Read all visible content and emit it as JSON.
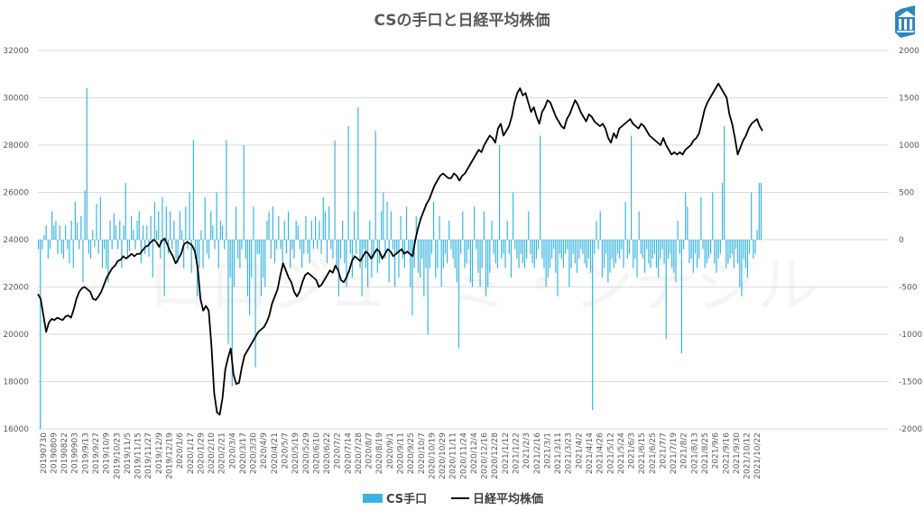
{
  "chart_data": {
    "type": "bar+line",
    "title": "CSの手口と日経平均株価",
    "watermark": "ロロジュ・ミ・ンテジル",
    "logo_icon": "bank-building-logo",
    "colors": {
      "bars": "#37B4E0",
      "line": "#000000",
      "grid": "#d9d9d9",
      "text": "#595959"
    },
    "left_axis": {
      "min": 16000,
      "max": 32000,
      "step": 2000,
      "ticks": [
        "16000",
        "18000",
        "20000",
        "22000",
        "24000",
        "26000",
        "28000",
        "30000",
        "32000"
      ]
    },
    "right_axis": {
      "min": -2000,
      "max": 2000,
      "step": 500,
      "ticks": [
        "-2000",
        "-1500",
        "-1000",
        "-500",
        "0",
        "500",
        "1000",
        "1500",
        "2000"
      ]
    },
    "x_tick_labels": [
      "20190730",
      "20190809",
      "20190822",
      "20190903",
      "2019/9/13",
      "2019/9/27",
      "2019/10/9",
      "2019/10/23",
      "2019/11/5",
      "2019/11/15",
      "2019/11/27",
      "2019/12/9",
      "2019/12/19",
      "2020/1/6",
      "2020/1/17",
      "2020/1/29",
      "2020/2/10",
      "2020/2/21",
      "2020/3/4",
      "2020/3/17",
      "2020/3/30",
      "2020/4/9",
      "2020/4/21",
      "2020/5/7",
      "2020/5/19",
      "2020/5/29",
      "2020/6/10",
      "2020/6/22",
      "2020/7/2",
      "2020/7/14",
      "2020/7/28",
      "2020/8/7",
      "2020/8/19",
      "2020/9/1",
      "2020/9/11",
      "2020/9/25",
      "2020/10/7",
      "2020/10/19",
      "2020/10/29",
      "2020/11/11",
      "2020/11/24",
      "2020/12/4",
      "2020/12/16",
      "2020/12/28",
      "2021/1/12",
      "2021/1/22",
      "2021/2/3",
      "2021/2/16",
      "2021/3/1",
      "2021/3/11",
      "2021/3/23",
      "2021/4/2",
      "2021/4/14",
      "2021/4/26",
      "2021/5/12",
      "2021/5/24",
      "2021/6/3",
      "2021/6/15",
      "2021/6/25",
      "2021/7/7",
      "2021/7/19",
      "2021/8/2",
      "2021/8/13",
      "2021/8/25",
      "2021/9/6",
      "2021/9/16",
      "2021/9/30",
      "2021/10/12",
      "2021/10/22"
    ],
    "legend": [
      {
        "name": "CS手口",
        "marker": "bar",
        "color": "#37B4E0"
      },
      {
        "name": "日経平均株価",
        "marker": "line",
        "color": "#000000"
      }
    ],
    "series": [
      {
        "name": "日経平均株価",
        "axis": "left",
        "type": "line",
        "x_range": [
          "2019-07-30",
          "2021-10-22"
        ],
        "values": [
          21700,
          21500,
          20800,
          20100,
          20500,
          20650,
          20600,
          20700,
          20650,
          20600,
          20750,
          20800,
          20700,
          21050,
          21500,
          21800,
          21950,
          22000,
          21900,
          21800,
          21500,
          21450,
          21600,
          21800,
          22100,
          22400,
          22600,
          22800,
          22900,
          23100,
          23150,
          23300,
          23200,
          23300,
          23400,
          23300,
          23400,
          23400,
          23550,
          23700,
          23750,
          23900,
          24000,
          23900,
          23700,
          23950,
          24050,
          23800,
          23500,
          23300,
          23000,
          23200,
          23400,
          23800,
          23900,
          23850,
          23750,
          23500,
          22800,
          21500,
          21000,
          21200,
          21000,
          19500,
          17500,
          16700,
          16600,
          17300,
          18500,
          19000,
          19400,
          18300,
          17900,
          17950,
          18600,
          19100,
          19300,
          19500,
          19700,
          19900,
          20100,
          20200,
          20300,
          20500,
          20800,
          21300,
          21600,
          21900,
          22500,
          23000,
          22700,
          22400,
          22200,
          21800,
          21600,
          21800,
          22200,
          22500,
          22600,
          22500,
          22400,
          22300,
          22000,
          22100,
          22300,
          22500,
          22700,
          22600,
          22900,
          22700,
          22300,
          22200,
          22400,
          22700,
          23100,
          23300,
          23200,
          23100,
          23300,
          23500,
          23400,
          23200,
          23400,
          23600,
          23500,
          23200,
          23400,
          23600,
          23500,
          23300,
          23400,
          23500,
          23600,
          23400,
          23500,
          23400,
          23300,
          24000,
          24500,
          24900,
          25200,
          25500,
          25700,
          26000,
          26300,
          26500,
          26700,
          26800,
          26700,
          26600,
          26600,
          26800,
          26700,
          26500,
          26700,
          26800,
          27000,
          27200,
          27400,
          27600,
          27800,
          27700,
          28000,
          28200,
          28400,
          28300,
          28100,
          28700,
          28900,
          28400,
          28600,
          28800,
          29200,
          29800,
          30200,
          30400,
          30100,
          30200,
          29800,
          29400,
          29600,
          29200,
          28900,
          29400,
          29600,
          29900,
          29800,
          29500,
          29200,
          29000,
          28800,
          28700,
          29100,
          29300,
          29600,
          29900,
          29700,
          29400,
          29200,
          29000,
          29300,
          29200,
          29000,
          28900,
          28800,
          28900,
          28700,
          28300,
          28100,
          28500,
          28300,
          28700,
          28800,
          28900,
          29000,
          29100,
          28900,
          28800,
          28700,
          28900,
          28800,
          28600,
          28400,
          28300,
          28200,
          28100,
          28000,
          28300,
          28000,
          27800,
          27600,
          27700,
          27600,
          27700,
          27600,
          27800,
          27900,
          28000,
          28200,
          28300,
          28500,
          29000,
          29500,
          29800,
          30000,
          30200,
          30400,
          30600,
          30400,
          30200,
          30000,
          29300,
          28900,
          28300,
          27600,
          27900,
          28200,
          28400,
          28700,
          28900,
          29000,
          29100,
          28800,
          28600
        ]
      },
      {
        "name": "CS手口",
        "axis": "right",
        "type": "bar",
        "x_range": [
          "2019-07-30",
          "2021-10-22"
        ],
        "values": [
          -100,
          -2000,
          -100,
          50,
          150,
          -200,
          -100,
          300,
          150,
          200,
          -150,
          150,
          -150,
          -200,
          150,
          -100,
          -250,
          200,
          -300,
          400,
          180,
          -100,
          250,
          -450,
          520,
          1600,
          -150,
          -200,
          100,
          -80,
          380,
          -150,
          450,
          -300,
          -100,
          -300,
          -450,
          200,
          -100,
          280,
          150,
          -100,
          200,
          -300,
          150,
          600,
          -200,
          -120,
          250,
          100,
          -100,
          200,
          300,
          -250,
          150,
          -150,
          150,
          -180,
          250,
          -400,
          400,
          100,
          300,
          -200,
          450,
          -600,
          350,
          -150,
          300,
          -100,
          200,
          -200,
          -250,
          300,
          100,
          -300,
          350,
          -100,
          500,
          -350,
          1050,
          -200,
          -600,
          -300,
          100,
          -300,
          450,
          -150,
          -200,
          300,
          150,
          -100,
          500,
          -300,
          200,
          150,
          -100,
          1050,
          -1100,
          -400,
          -1550,
          -500,
          350,
          -200,
          -300,
          -100,
          1000,
          -200,
          -600,
          -800,
          -400,
          350,
          -1350,
          -150,
          -150,
          -600,
          -400,
          -500,
          200,
          300,
          -200,
          350,
          -250,
          -100,
          250,
          -100,
          -300,
          200,
          -150,
          300,
          -300,
          -100,
          -200,
          200,
          150,
          -100,
          -300,
          -150,
          250,
          -150,
          -250,
          200,
          -100,
          250,
          -100,
          200,
          -150,
          450,
          300,
          -250,
          350,
          -100,
          -200,
          1050,
          -300,
          -600,
          -200,
          200,
          -250,
          -500,
          1200,
          -150,
          -400,
          300,
          -150,
          1400,
          -300,
          -600,
          -100,
          -300,
          -500,
          200,
          -400,
          -200,
          1150,
          -350,
          -250,
          300,
          500,
          -200,
          400,
          -450,
          300,
          -100,
          -500,
          -150,
          -400,
          250,
          -200,
          -300,
          350,
          -150,
          -500,
          -800,
          -300,
          250,
          -350,
          -400,
          -200,
          -600,
          -300,
          -1000,
          -300,
          -150,
          400,
          -400,
          -300,
          250,
          -500,
          -300,
          -150,
          -250,
          200,
          -100,
          -200,
          -300,
          -450,
          -1150,
          -150,
          300,
          -300,
          -250,
          -100,
          -450,
          -500,
          350,
          -100,
          -350,
          -500,
          -300,
          300,
          -600,
          -500,
          -350,
          200,
          -150,
          -250,
          -300,
          1000,
          -200,
          -150,
          -300,
          200,
          -150,
          -400,
          500,
          -100,
          -200,
          -300,
          -150,
          -250,
          -300,
          -200,
          300,
          -150,
          -250,
          -300,
          -200,
          -100,
          1100,
          -200,
          -300,
          -500,
          -400,
          -300,
          -200,
          -100,
          -350,
          -600,
          -150,
          -200,
          -300,
          -150,
          -100,
          -500,
          -300,
          -150,
          -250,
          -350,
          -200,
          -100,
          -150,
          -250,
          -300,
          -200,
          -350,
          -1800,
          -150,
          200,
          -100,
          300,
          -400,
          -300,
          -150,
          -450,
          -350,
          -200,
          -300,
          -250,
          -150,
          -200,
          -100,
          -300,
          400,
          -200,
          -150,
          1100,
          -300,
          -200,
          -400,
          300,
          -150,
          -200,
          -350,
          -100,
          -250,
          -300,
          -200,
          -150,
          -300,
          -400,
          -200,
          -100,
          -250,
          -1050,
          -200,
          -150,
          -300,
          -350,
          -450,
          200,
          -150,
          -1200,
          -100,
          500,
          350,
          -250,
          -200,
          -350,
          -150,
          -300,
          -200,
          450,
          -100,
          -300,
          -250,
          -200,
          -150,
          500,
          -250,
          -350,
          -200,
          -150,
          600,
          1200,
          -300,
          -250,
          -200,
          -150,
          -300,
          -100,
          -250,
          -500,
          -600,
          -200,
          -300,
          -400,
          -150,
          500,
          -200,
          -150,
          100,
          600,
          600
        ]
      }
    ],
    "grid": true,
    "legend_position": "bottom"
  }
}
